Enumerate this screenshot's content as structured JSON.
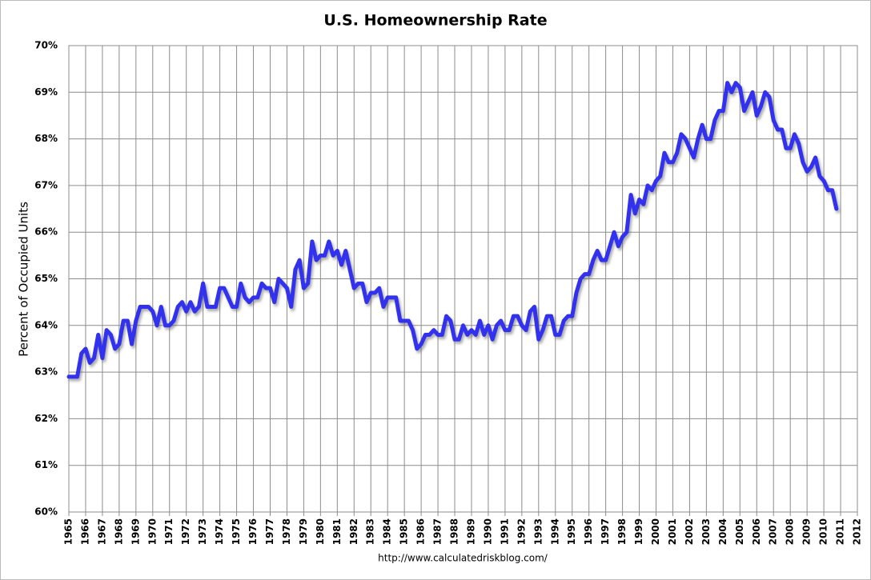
{
  "chart_data": {
    "type": "line",
    "title": "U.S. Homeownership Rate",
    "ylabel": "Percent of Occupied Units",
    "source": "http://www.calculatedriskblog.com/",
    "color": "#3333ee",
    "grid": true,
    "xlim": [
      1965,
      2012
    ],
    "xticks": [
      1965,
      1966,
      1967,
      1968,
      1969,
      1970,
      1971,
      1972,
      1973,
      1974,
      1975,
      1976,
      1977,
      1978,
      1979,
      1980,
      1981,
      1982,
      1983,
      1984,
      1985,
      1986,
      1987,
      1988,
      1989,
      1990,
      1991,
      1992,
      1993,
      1994,
      1995,
      1996,
      1997,
      1998,
      1999,
      2000,
      2001,
      2002,
      2003,
      2004,
      2005,
      2006,
      2007,
      2008,
      2009,
      2010,
      2011,
      2012
    ],
    "ylim": [
      60,
      70
    ],
    "yticks": [
      {
        "value": 60,
        "label": "60%"
      },
      {
        "value": 61,
        "label": "61%"
      },
      {
        "value": 62,
        "label": "62%"
      },
      {
        "value": 63,
        "label": "63%"
      },
      {
        "value": 64,
        "label": "64%"
      },
      {
        "value": 65,
        "label": "65%"
      },
      {
        "value": 66,
        "label": "66%"
      },
      {
        "value": 67,
        "label": "67%"
      },
      {
        "value": 68,
        "label": "68%"
      },
      {
        "value": 69,
        "label": "69%"
      },
      {
        "value": 70,
        "label": "70%"
      }
    ],
    "x": [
      1965,
      1965.25,
      1965.5,
      1965.75,
      1966,
      1966.25,
      1966.5,
      1966.75,
      1967,
      1967.25,
      1967.5,
      1967.75,
      1968,
      1968.25,
      1968.5,
      1968.75,
      1969,
      1969.25,
      1969.5,
      1969.75,
      1970,
      1970.25,
      1970.5,
      1970.75,
      1971,
      1971.25,
      1971.5,
      1971.75,
      1972,
      1972.25,
      1972.5,
      1972.75,
      1973,
      1973.25,
      1973.5,
      1973.75,
      1974,
      1974.25,
      1974.5,
      1974.75,
      1975,
      1975.25,
      1975.5,
      1975.75,
      1976,
      1976.25,
      1976.5,
      1976.75,
      1977,
      1977.25,
      1977.5,
      1977.75,
      1978,
      1978.25,
      1978.5,
      1978.75,
      1979,
      1979.25,
      1979.5,
      1979.75,
      1980,
      1980.25,
      1980.5,
      1980.75,
      1981,
      1981.25,
      1981.5,
      1981.75,
      1982,
      1982.25,
      1982.5,
      1982.75,
      1983,
      1983.25,
      1983.5,
      1983.75,
      1984,
      1984.25,
      1984.5,
      1984.75,
      1985,
      1985.25,
      1985.5,
      1985.75,
      1986,
      1986.25,
      1986.5,
      1986.75,
      1987,
      1987.25,
      1987.5,
      1987.75,
      1988,
      1988.25,
      1988.5,
      1988.75,
      1989,
      1989.25,
      1989.5,
      1989.75,
      1990,
      1990.25,
      1990.5,
      1990.75,
      1991,
      1991.25,
      1991.5,
      1991.75,
      1992,
      1992.25,
      1992.5,
      1992.75,
      1993,
      1993.25,
      1993.5,
      1993.75,
      1994,
      1994.25,
      1994.5,
      1994.75,
      1995,
      1995.25,
      1995.5,
      1995.75,
      1996,
      1996.25,
      1996.5,
      1996.75,
      1997,
      1997.25,
      1997.5,
      1997.75,
      1998,
      1998.25,
      1998.5,
      1998.75,
      1999,
      1999.25,
      1999.5,
      1999.75,
      2000,
      2000.25,
      2000.5,
      2000.75,
      2001,
      2001.25,
      2001.5,
      2001.75,
      2002,
      2002.25,
      2002.5,
      2002.75,
      2003,
      2003.25,
      2003.5,
      2003.75,
      2004,
      2004.25,
      2004.5,
      2004.75,
      2005,
      2005.25,
      2005.5,
      2005.75,
      2006,
      2006.25,
      2006.5,
      2006.75,
      2007,
      2007.25,
      2007.5,
      2007.75,
      2008,
      2008.25,
      2008.5,
      2008.75,
      2009,
      2009.25,
      2009.5,
      2009.75,
      2010,
      2010.25,
      2010.5,
      2010.75
    ],
    "values": [
      62.9,
      62.9,
      62.9,
      63.4,
      63.5,
      63.2,
      63.3,
      63.8,
      63.3,
      63.9,
      63.8,
      63.5,
      63.6,
      64.1,
      64.1,
      63.6,
      64.1,
      64.4,
      64.4,
      64.4,
      64.3,
      64.0,
      64.4,
      64.0,
      64.0,
      64.1,
      64.4,
      64.5,
      64.3,
      64.5,
      64.3,
      64.4,
      64.9,
      64.4,
      64.4,
      64.4,
      64.8,
      64.8,
      64.6,
      64.4,
      64.4,
      64.9,
      64.6,
      64.5,
      64.6,
      64.6,
      64.9,
      64.8,
      64.8,
      64.5,
      65.0,
      64.9,
      64.8,
      64.4,
      65.2,
      65.4,
      64.8,
      64.9,
      65.8,
      65.4,
      65.5,
      65.5,
      65.8,
      65.5,
      65.6,
      65.3,
      65.6,
      65.2,
      64.8,
      64.9,
      64.9,
      64.5,
      64.7,
      64.7,
      64.8,
      64.4,
      64.6,
      64.6,
      64.6,
      64.1,
      64.1,
      64.1,
      63.9,
      63.5,
      63.6,
      63.8,
      63.8,
      63.9,
      63.8,
      63.8,
      64.2,
      64.1,
      63.7,
      63.7,
      64.0,
      63.8,
      63.9,
      63.8,
      64.1,
      63.8,
      64.0,
      63.7,
      64.0,
      64.1,
      63.9,
      63.9,
      64.2,
      64.2,
      64.0,
      63.9,
      64.3,
      64.4,
      63.7,
      63.9,
      64.2,
      64.2,
      63.8,
      63.8,
      64.1,
      64.2,
      64.2,
      64.7,
      65.0,
      65.1,
      65.1,
      65.4,
      65.6,
      65.4,
      65.4,
      65.7,
      66.0,
      65.7,
      65.9,
      66.0,
      66.8,
      66.4,
      66.7,
      66.6,
      67.0,
      66.9,
      67.1,
      67.2,
      67.7,
      67.5,
      67.5,
      67.7,
      68.1,
      68.0,
      67.8,
      67.6,
      68.0,
      68.3,
      68.0,
      68.0,
      68.4,
      68.6,
      68.6,
      69.2,
      69.0,
      69.2,
      69.1,
      68.6,
      68.8,
      69.0,
      68.5,
      68.7,
      69.0,
      68.9,
      68.4,
      68.2,
      68.2,
      67.8,
      67.8,
      68.1,
      67.9,
      67.5,
      67.3,
      67.4,
      67.6,
      67.2,
      67.1,
      66.9,
      66.9,
      66.5
    ]
  }
}
